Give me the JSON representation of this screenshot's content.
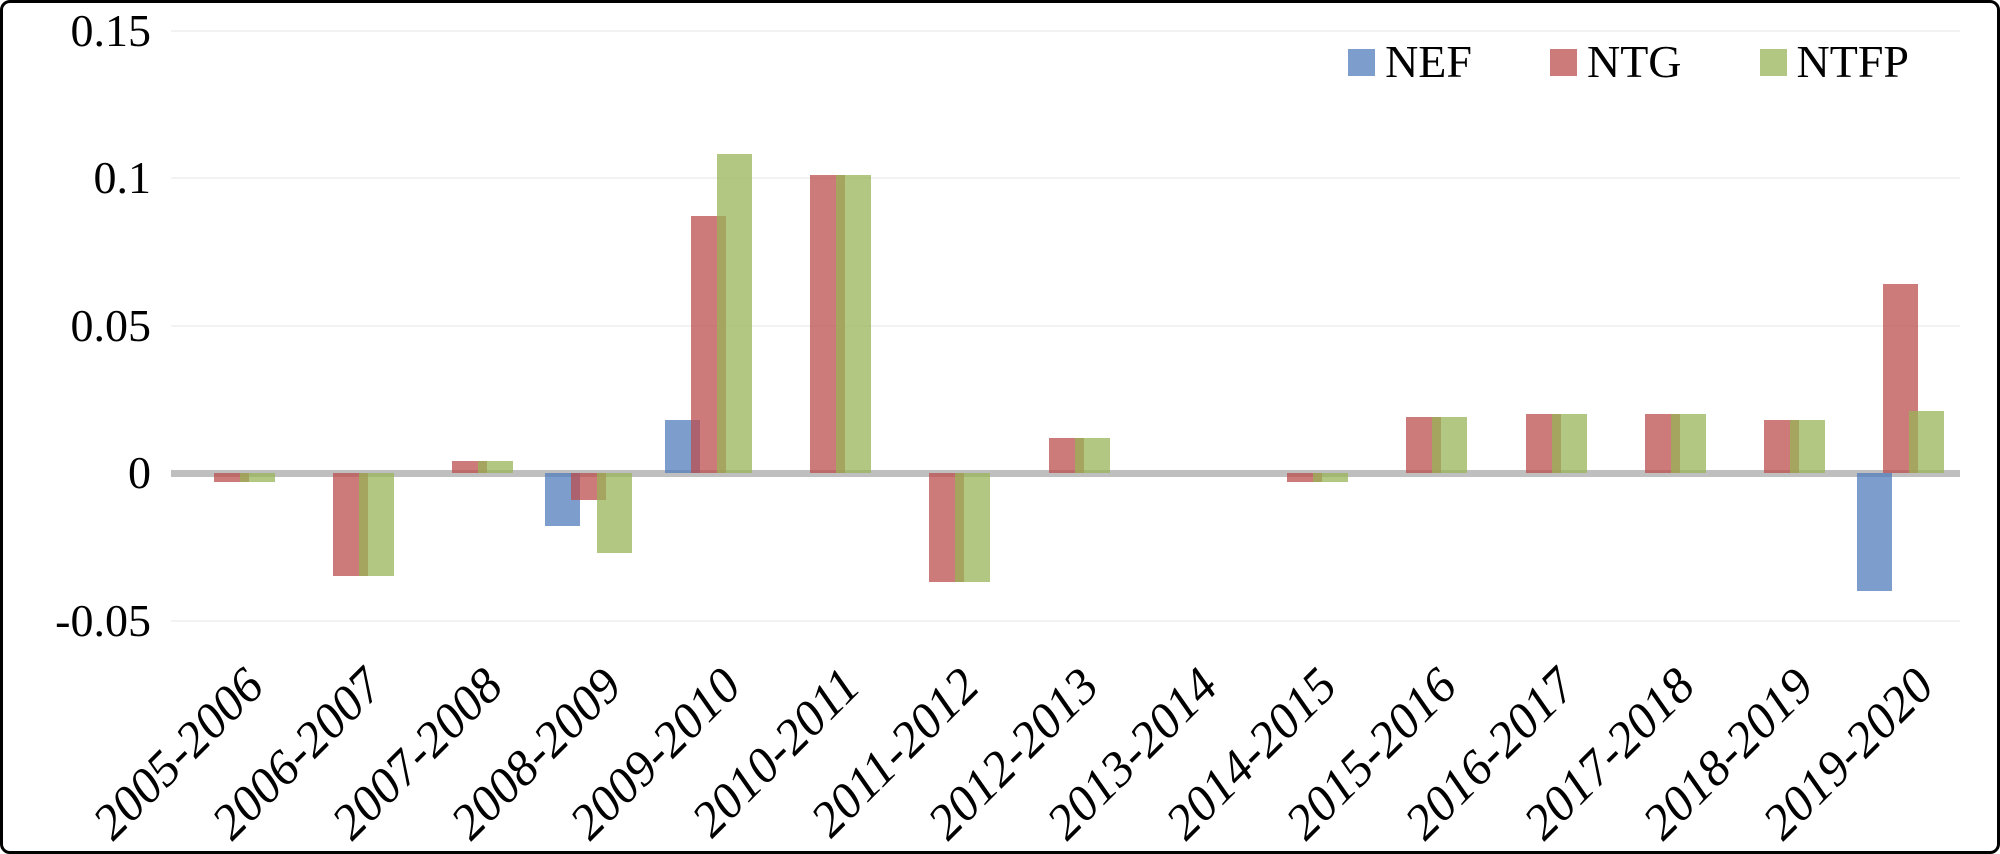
{
  "chart_data": {
    "type": "bar",
    "title": "",
    "xlabel": "",
    "ylabel": "",
    "categories": [
      "2005-2006",
      "2006-2007",
      "2007-2008",
      "2008-2009",
      "2009-2010",
      "2010-2011",
      "2011-2012",
      "2012-2013",
      "2013-2014",
      "2014-2015",
      "2015-2016",
      "2016-2017",
      "2017-2018",
      "2018-2019",
      "2019-2020"
    ],
    "series": [
      {
        "name": "NEF",
        "legend_color": "#7D9ECD",
        "bar_color": "#517DBC",
        "values": [
          0,
          0,
          0,
          -0.018,
          0.018,
          0,
          0,
          0,
          0,
          0,
          0,
          0,
          0,
          0,
          -0.04
        ]
      },
      {
        "name": "NTG",
        "legend_color": "#CD7A7A",
        "bar_color": "#BC4D4D",
        "values": [
          -0.003,
          -0.035,
          0.004,
          -0.009,
          0.087,
          0.101,
          -0.037,
          0.012,
          0,
          -0.003,
          0.019,
          0.02,
          0.02,
          0.018,
          0.064
        ]
      },
      {
        "name": "NTFP",
        "legend_color": "#B2C781",
        "bar_color": "#98B457",
        "values": [
          -0.003,
          -0.035,
          0.004,
          -0.027,
          0.108,
          0.101,
          -0.037,
          0.012,
          0,
          -0.003,
          0.019,
          0.02,
          0.02,
          0.018,
          0.021
        ]
      }
    ],
    "y_ticks": [
      {
        "label": "0.15",
        "value": 0.15
      },
      {
        "label": "0.1",
        "value": 0.1
      },
      {
        "label": "0.05",
        "value": 0.05
      },
      {
        "label": "0",
        "value": 0
      },
      {
        "label": "-0.05",
        "value": -0.05
      }
    ],
    "ylim": [
      -0.05,
      0.15
    ],
    "grid": true,
    "legend_position": "top-right",
    "bar_opacity": 0.75,
    "gridline_color": "#F2F2F2",
    "zero_axis_color": "#BFBFBF"
  }
}
